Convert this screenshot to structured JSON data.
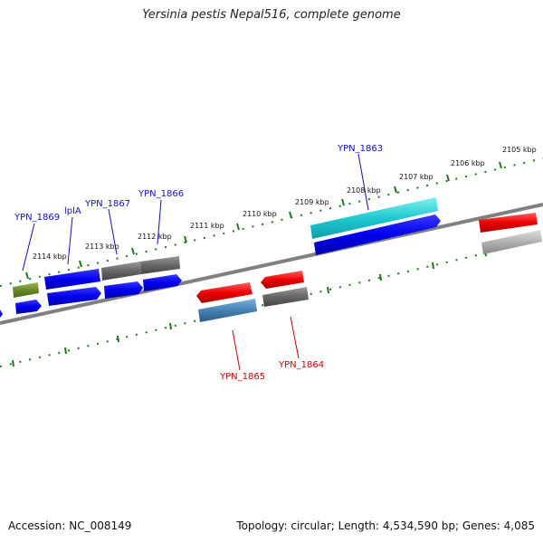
{
  "title": "Yersinia pestis Nepal516, complete genome",
  "footer": {
    "accession": "Accession: NC_008149",
    "topology": "Topology: circular; Length: 4,534,590 bp; Genes: 4,085"
  },
  "ticks": [
    "2105 kbp",
    "2106 kbp",
    "2107 kbp",
    "2108 kbp",
    "2109 kbp",
    "2110 kbp",
    "2111 kbp",
    "2112 kbp",
    "2113 kbp",
    "2114 kbp"
  ],
  "gene_labels": [
    {
      "text": "YPN_1869",
      "color": "#1010c0"
    },
    {
      "text": "lplA",
      "color": "#1010c0"
    },
    {
      "text": "YPN_1867",
      "color": "#1010c0"
    },
    {
      "text": "YPN_1866",
      "color": "#1010c0"
    },
    {
      "text": "YPN_1863",
      "color": "#1010c0"
    },
    {
      "text": "YPN_1865",
      "color": "#d00000"
    },
    {
      "text": "YPN_1864",
      "color": "#d00000"
    }
  ],
  "colors": {
    "backbone": "#808080",
    "tick_marks": "#1a7a1a",
    "cds_blue": "#0000ee",
    "cds_gray": "#666666",
    "cds_green": "#6a8a2a",
    "cds_cyan": "#20c8d0",
    "cds_red": "#ee0000",
    "cds_steelblue": "#4682b4",
    "cds_lightgray": "#b0b0b0"
  }
}
